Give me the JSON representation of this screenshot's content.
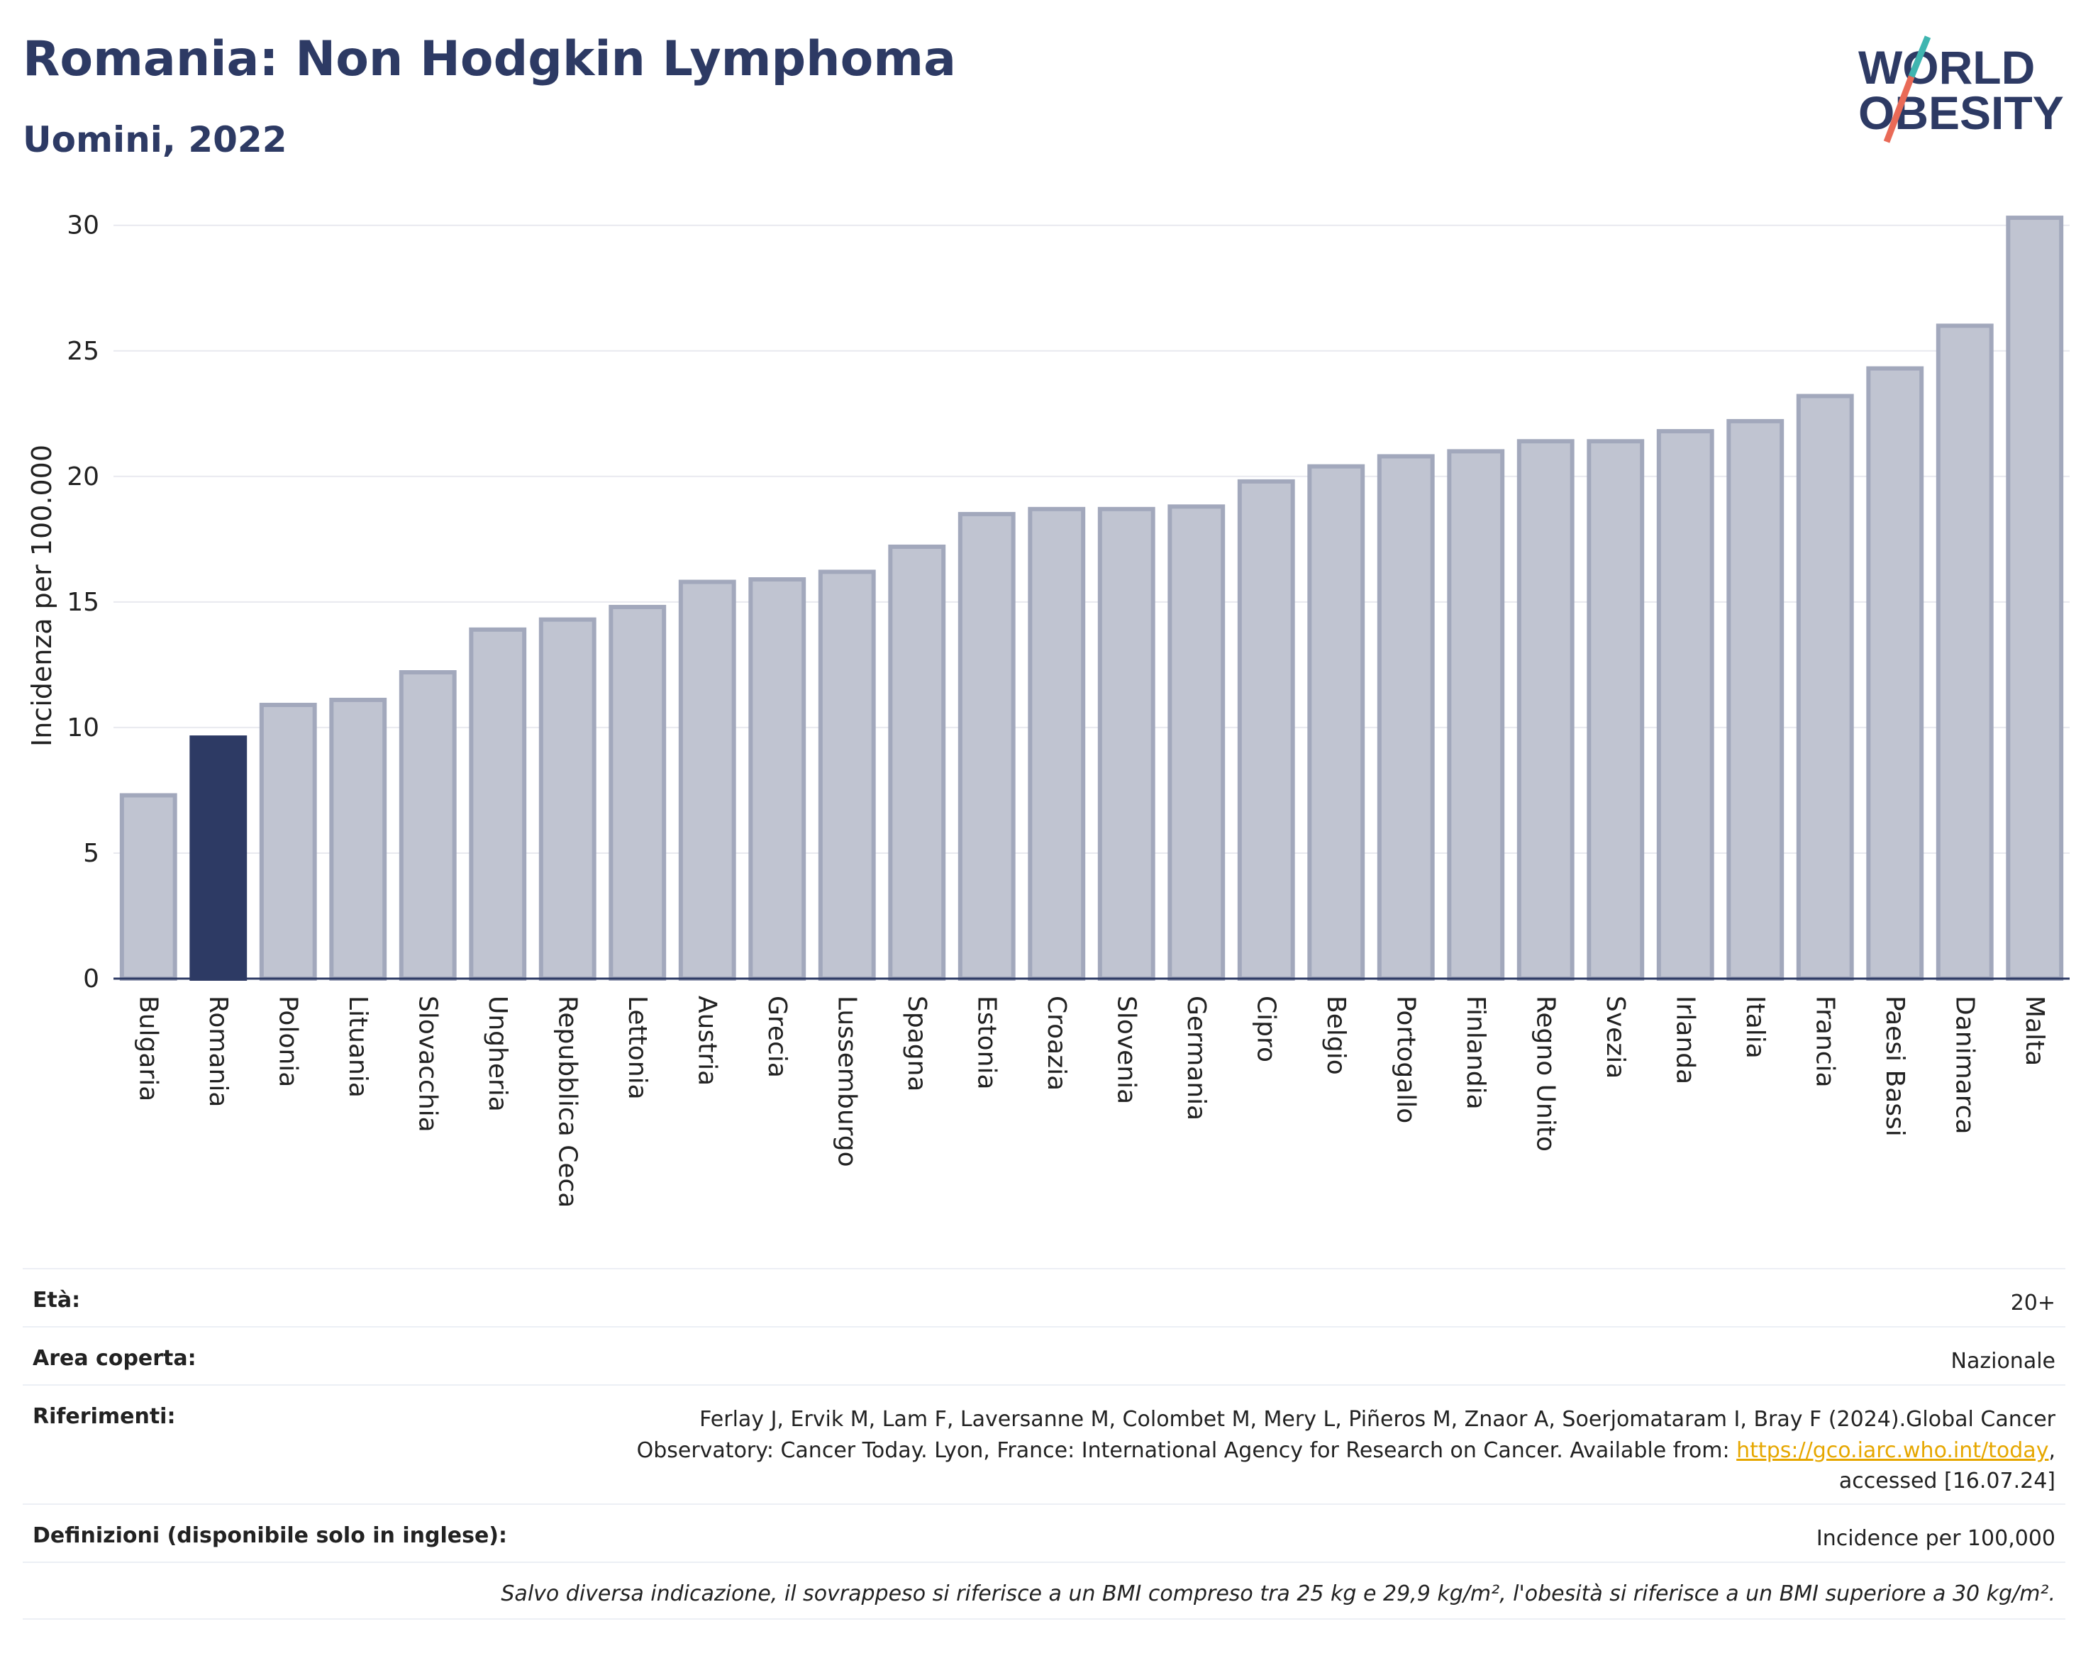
{
  "header": {
    "title": "Romania: Non Hodgkin Lymphoma",
    "subtitle": "Uomini, 2022"
  },
  "logo": {
    "line1": "WORLD",
    "line2": "OBESITY",
    "slash_colors": [
      "#3fb5b0",
      "#e96a57"
    ]
  },
  "colors": {
    "bar": "#c0c4d1",
    "bar_border": "#a2a8bc",
    "highlight": "#2d3a64",
    "grid": "#e8e9ef",
    "axis": "#2d3a64"
  },
  "chart_data": {
    "type": "bar",
    "ylabel": "Incidenza per 100.000",
    "xlabel": "",
    "ylim": [
      0,
      30.5
    ],
    "yticks": [
      0,
      5,
      10,
      15,
      20,
      25,
      30
    ],
    "grid": true,
    "highlight": "Romania",
    "categories": [
      "Bulgaria",
      "Romania",
      "Polonia",
      "Lituania",
      "Slovacchia",
      "Ungheria",
      "Repubblica Ceca",
      "Lettonia",
      "Austria",
      "Grecia",
      "Lussemburgo",
      "Spagna",
      "Estonia",
      "Croazia",
      "Slovenia",
      "Germania",
      "Cipro",
      "Belgio",
      "Portogallo",
      "Finlandia",
      "Regno Unito",
      "Svezia",
      "Irlanda",
      "Italia",
      "Francia",
      "Paesi Bassi",
      "Danimarca",
      "Malta"
    ],
    "values": [
      7.3,
      9.6,
      10.9,
      11.1,
      12.2,
      13.9,
      14.3,
      14.8,
      15.8,
      15.9,
      16.2,
      17.2,
      18.5,
      18.7,
      18.7,
      18.8,
      19.8,
      20.4,
      20.8,
      21.0,
      21.4,
      21.4,
      21.8,
      22.2,
      23.2,
      24.3,
      26.0,
      30.3
    ]
  },
  "info": {
    "age_label": "Età:",
    "age_value": "20+",
    "area_label": "Area coperta:",
    "area_value": "Nazionale",
    "refs_label": "Riferimenti:",
    "refs_line1": "Ferlay J, Ervik M, Lam F, Laversanne M, Colombet M, Mery L, Piñeros M, Znaor A, Soerjomataram I, Bray F (2024).Global Cancer",
    "refs_line2_pre": "Observatory: Cancer Today. Lyon, France: International Agency for Research on Cancer. Available from: ",
    "refs_link": "https://gco.iarc.who.int/today",
    "refs_line2_post": ",",
    "refs_line3": "accessed [16.07.24]",
    "defs_label": "Definizioni (disponibile solo in inglese):",
    "defs_value": "Incidence per 100,000",
    "note": "Salvo diversa indicazione, il sovrappeso si riferisce a un BMI compreso tra 25 kg e 29,9 kg/m², l'obesità si riferisce a un BMI superiore a 30 kg/m²."
  }
}
